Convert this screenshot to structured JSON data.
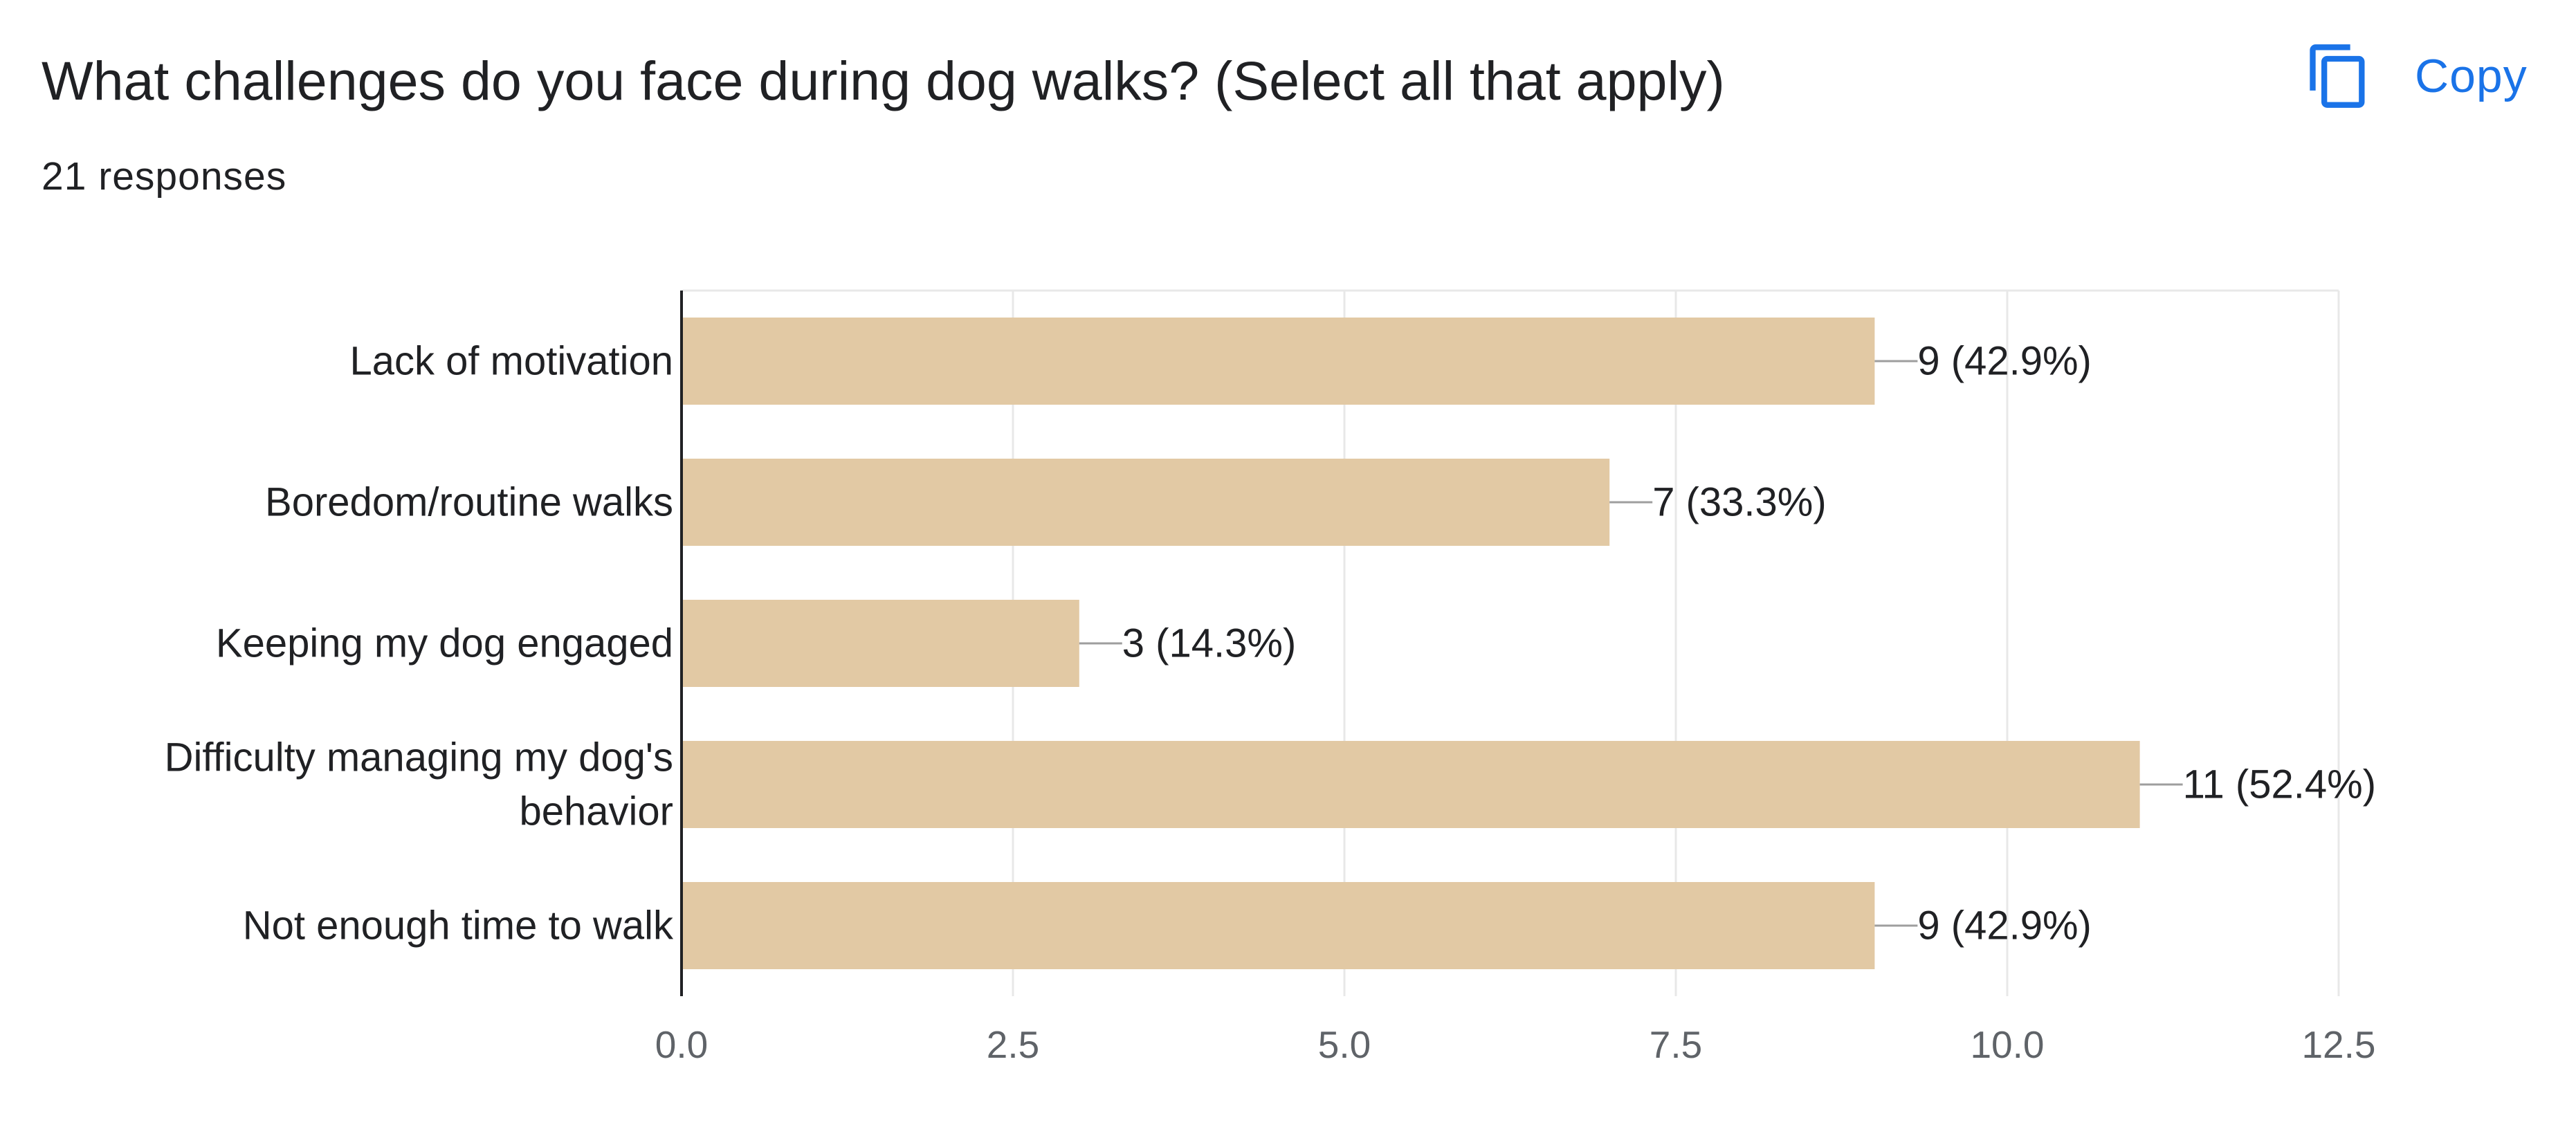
{
  "header": {
    "title": "What challenges do you face during dog walks? (Select all that apply)",
    "responses": "21 responses",
    "copy_label": "Copy",
    "copy_icon": "copy-icon"
  },
  "colors": {
    "bar": "#e2c9a4",
    "accent": "#1a73e8",
    "grid": "#e8e8e8",
    "axis": "#202124",
    "leader": "#9e9e9e"
  },
  "chart_data": {
    "type": "bar",
    "orientation": "horizontal",
    "title": "",
    "xlabel": "",
    "ylabel": "",
    "categories": [
      [
        "Lack of motivation"
      ],
      [
        "Boredom/routine walks"
      ],
      [
        "Keeping my dog engaged"
      ],
      [
        "Difficulty managing my dog's",
        "behavior"
      ],
      [
        "Not enough time to walk"
      ]
    ],
    "values": [
      9,
      7,
      3,
      11,
      9
    ],
    "data_labels": [
      "9 (42.9%)",
      "7 (33.3%)",
      "3 (14.3%)",
      "11 (52.4%)",
      "9 (42.9%)"
    ],
    "xlim": [
      0,
      12.5
    ],
    "xticks": [
      "0.0",
      "2.5",
      "5.0",
      "7.5",
      "10.0",
      "12.5"
    ],
    "xtick_values": [
      0,
      2.5,
      5,
      7.5,
      10,
      12.5
    ],
    "grid": true
  }
}
